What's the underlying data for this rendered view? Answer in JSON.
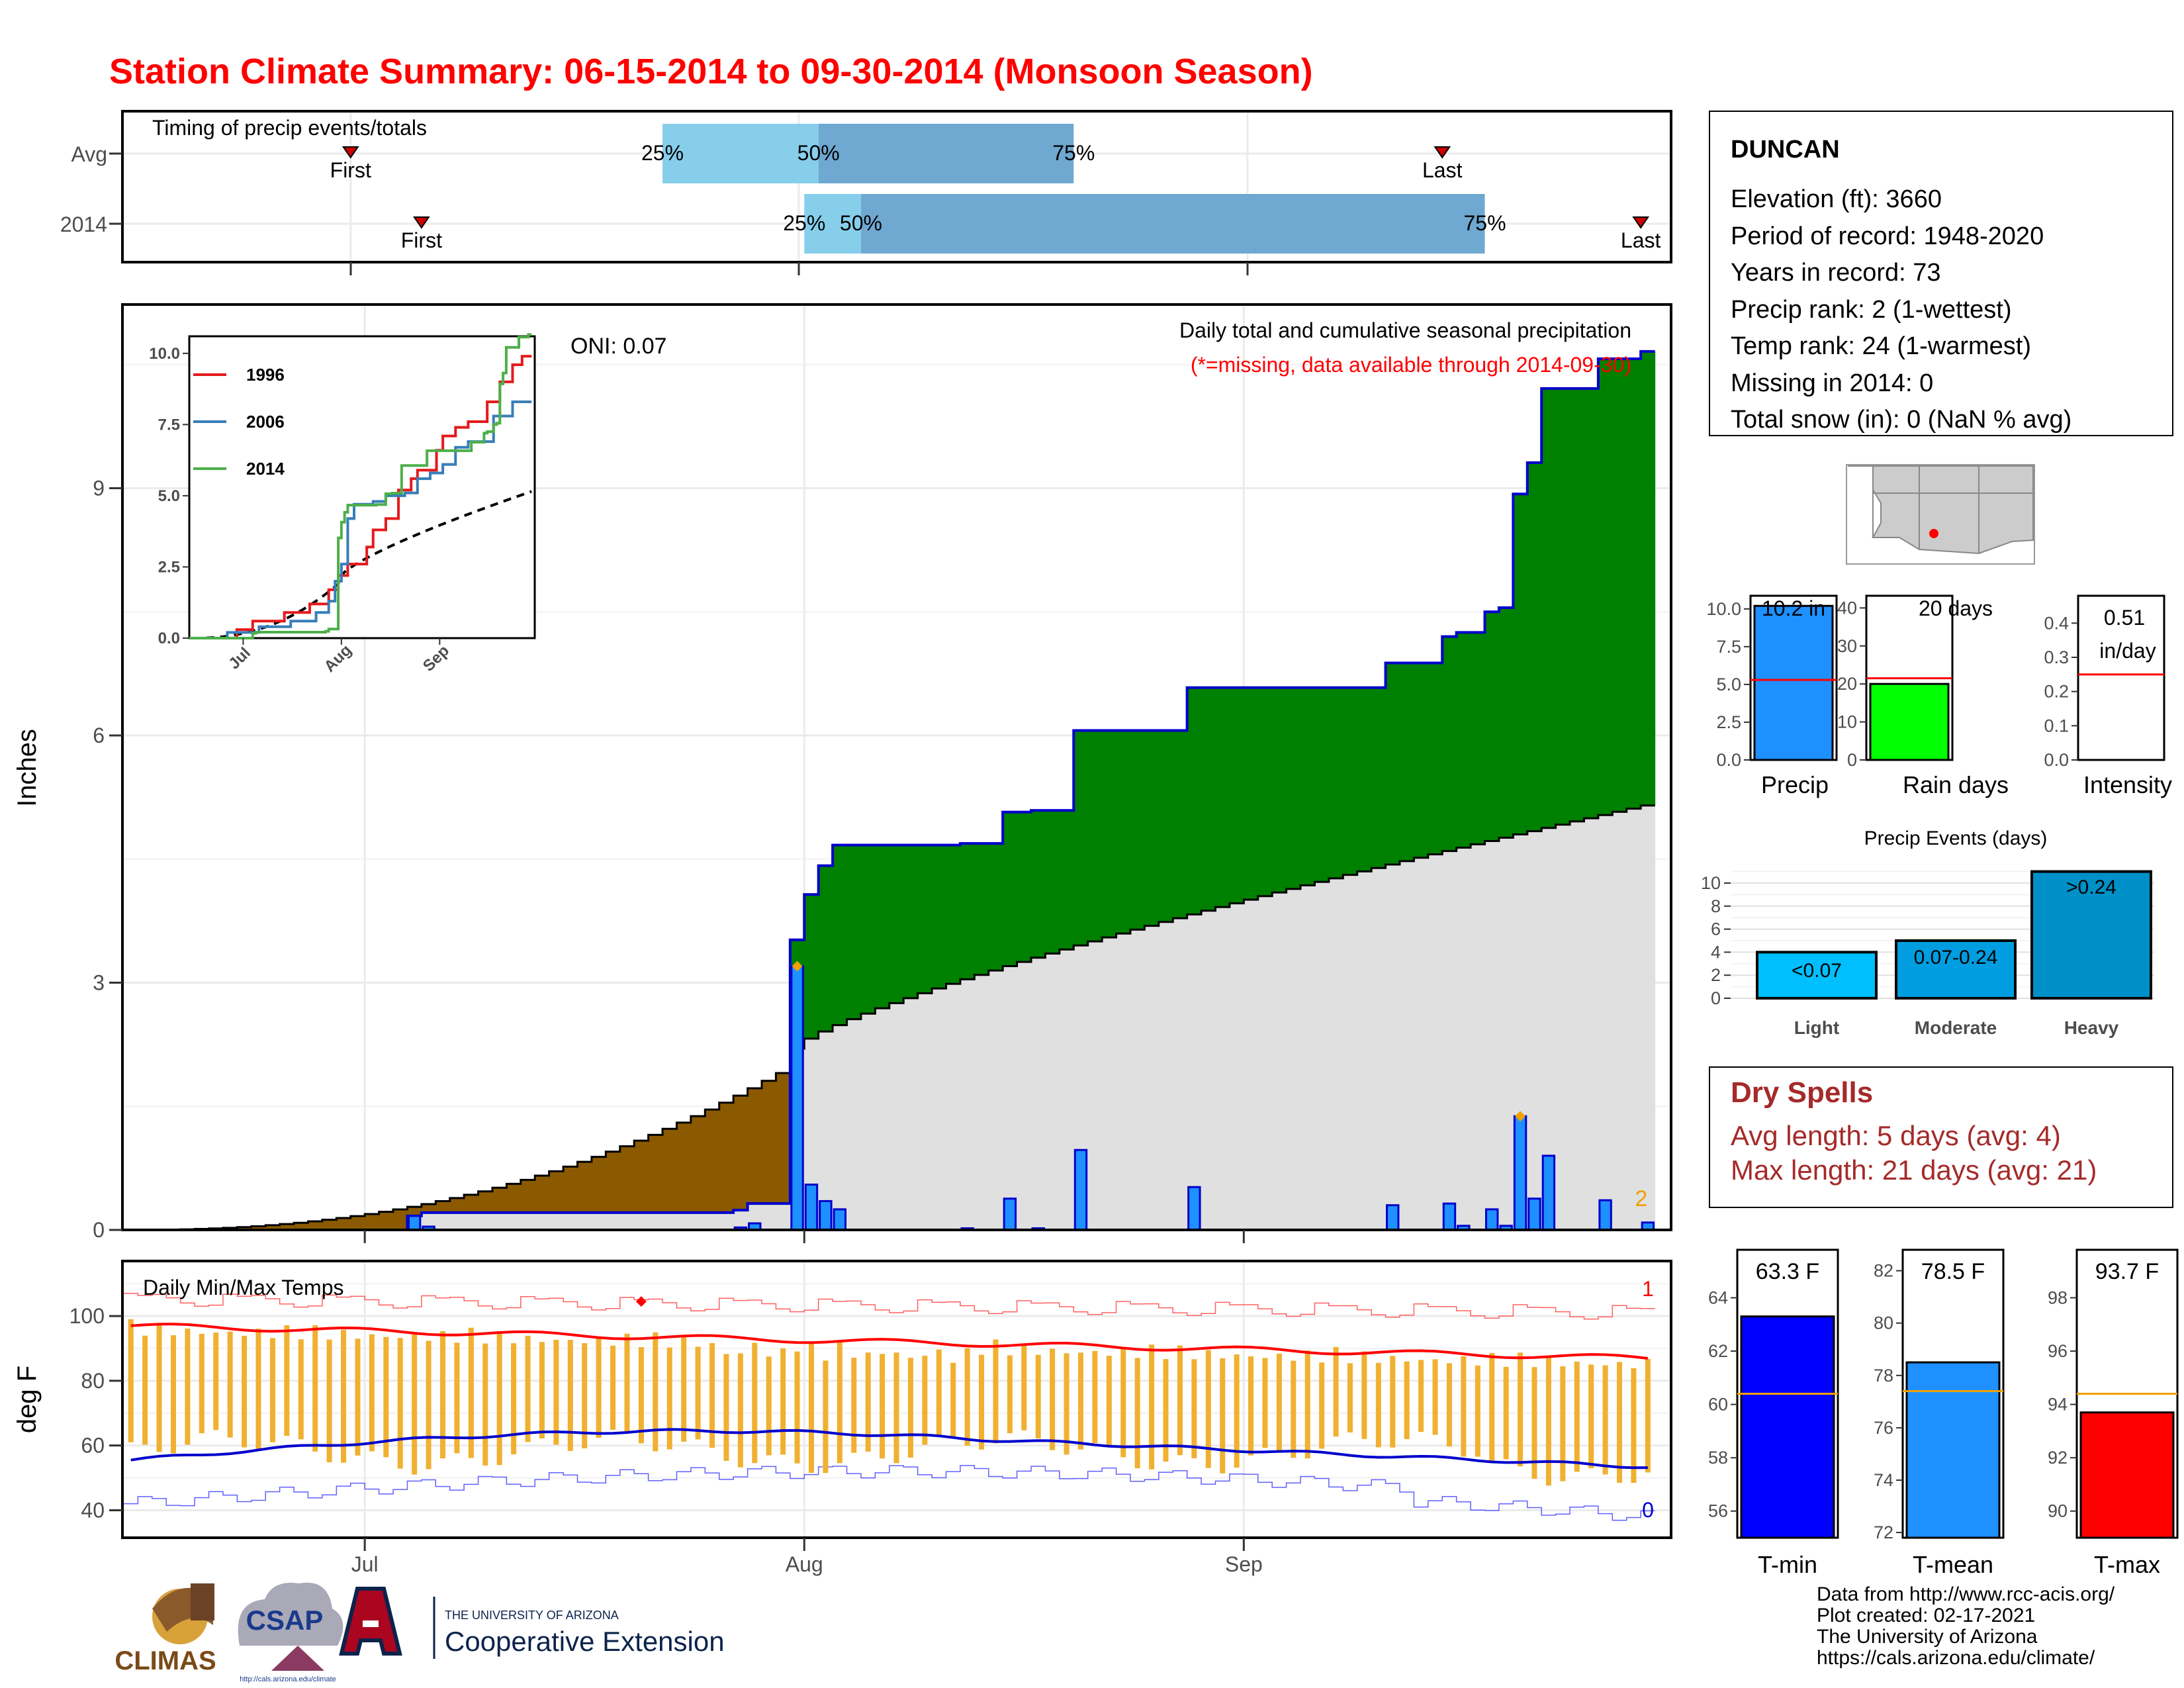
{
  "title": "Station Climate Summary: 06-15-2014 to 09-30-2014 (Monsoon Season)",
  "colors": {
    "title": "#ff0000",
    "green": "#008000",
    "brown": "#8b5a00",
    "gray": "#e0e0e0",
    "blue_bar": "#1e90ff",
    "light_blue": "#87ceeb",
    "steel": "#6fa8d0",
    "dry_red": "#a52a2a",
    "yellow": "#f0b030"
  },
  "timing": {
    "title": "Timing of precip events/totals",
    "rows": [
      {
        "label": "Avg",
        "first": "2014-06-30",
        "p25": "2014-07-22",
        "p50": "2014-08-02",
        "p75": "2014-08-20",
        "last": "2014-09-15"
      },
      {
        "label": "2014",
        "first": "2014-07-05",
        "p25": "2014-08-01",
        "p50": "2014-08-05",
        "p75": "2014-09-18",
        "last": "2014-09-29"
      }
    ],
    "labels": {
      "first": "First",
      "last": "Last",
      "p25": "25%",
      "p50": "50%",
      "p75": "75%"
    }
  },
  "main": {
    "ylabel": "Inches",
    "yticks": [
      0,
      3,
      6,
      9
    ],
    "oni": "ONI: 0.07",
    "caption": "Daily total and cumulative seasonal precipitation",
    "note": "(*=missing, data available through 2014-09-30)",
    "missing_count": "2"
  },
  "inset": {
    "yticks": [
      "0.0",
      "2.5",
      "5.0",
      "7.5",
      "10.0"
    ],
    "xticks": [
      "Jul",
      "Aug",
      "Sep"
    ],
    "series": [
      {
        "name": "1996",
        "color": "#e41a1c"
      },
      {
        "name": "2006",
        "color": "#377eb8"
      },
      {
        "name": "2014",
        "color": "#4daf4a"
      }
    ]
  },
  "temps": {
    "title": "Daily Min/Max Temps",
    "ylabel": "deg F",
    "yticks": [
      40,
      60,
      80,
      100
    ],
    "max_count": "1",
    "min_count": "0",
    "xticks": [
      "Jul",
      "Aug",
      "Sep"
    ]
  },
  "station": {
    "name": "DUNCAN",
    "lines": [
      "Elevation (ft): 3660",
      "Period of record: 1948-2020",
      "Years in record: 73",
      "Precip rank: 2 (1-wettest)",
      "Temp rank: 24 (1-warmest)",
      "Missing in 2014: 0",
      "Total snow (in): 0 (NaN % avg)"
    ]
  },
  "mini_bars": {
    "precip": {
      "label": "Precip",
      "value_label": "10.2 in",
      "yticks": [
        "0.0",
        "2.5",
        "5.0",
        "7.5",
        "10.0"
      ]
    },
    "rain_days": {
      "label": "Rain days",
      "value_label": "20 days",
      "yticks": [
        "0",
        "10",
        "20",
        "30",
        "40"
      ]
    },
    "intensity": {
      "label": "Intensity",
      "value_label": "0.51",
      "unit": "in/day",
      "yticks": [
        "0.0",
        "0.1",
        "0.2",
        "0.3",
        "0.4"
      ]
    }
  },
  "events": {
    "title": "Precip Events (days)",
    "yticks": [
      "0",
      "2",
      "4",
      "6",
      "8",
      "10"
    ],
    "bars": [
      {
        "cat": "Light",
        "label": "<0.07",
        "value": 4,
        "color": "#00bfff"
      },
      {
        "cat": "Moderate",
        "label": "0.07-0.24",
        "value": 5,
        "color": "#009ee0"
      },
      {
        "cat": "Heavy",
        "label": ">0.24",
        "value": 11,
        "color": "#0090c8"
      }
    ]
  },
  "dry_spells": {
    "title": "Dry Spells",
    "avg": "Avg length: 5 days (avg: 4)",
    "max": "Max length: 21 days (avg: 21)"
  },
  "temp_bars": {
    "tmin": {
      "label": "T-min",
      "value_label": "63.3 F",
      "value": 63.3,
      "avg": 60.4,
      "yticks": [
        "56",
        "58",
        "60",
        "62",
        "64"
      ],
      "color": "#0000ff"
    },
    "tmean": {
      "label": "T-mean",
      "value_label": "78.5 F",
      "value": 78.5,
      "avg": 77.4,
      "yticks": [
        "72",
        "74",
        "76",
        "78",
        "80",
        "82"
      ],
      "color": "#1e90ff"
    },
    "tmax": {
      "label": "T-max",
      "value_label": "93.7 F",
      "value": 93.7,
      "avg": 94.4,
      "yticks": [
        "90",
        "92",
        "94",
        "96",
        "98"
      ],
      "color": "#ff0000"
    }
  },
  "footer": {
    "lines": [
      "Data from http://www.rcc-acis.org/",
      "Plot created: 02-17-2021",
      "The University of Arizona",
      "https://cals.arizona.edu/climate/"
    ],
    "logos": {
      "climas": "CLIMAS",
      "csap": "CSAP",
      "csap_url": "http://cals.arizona.edu/climate",
      "ua_top": "THE UNIVERSITY OF ARIZONA",
      "ua_bottom": "Cooperative Extension"
    }
  }
}
